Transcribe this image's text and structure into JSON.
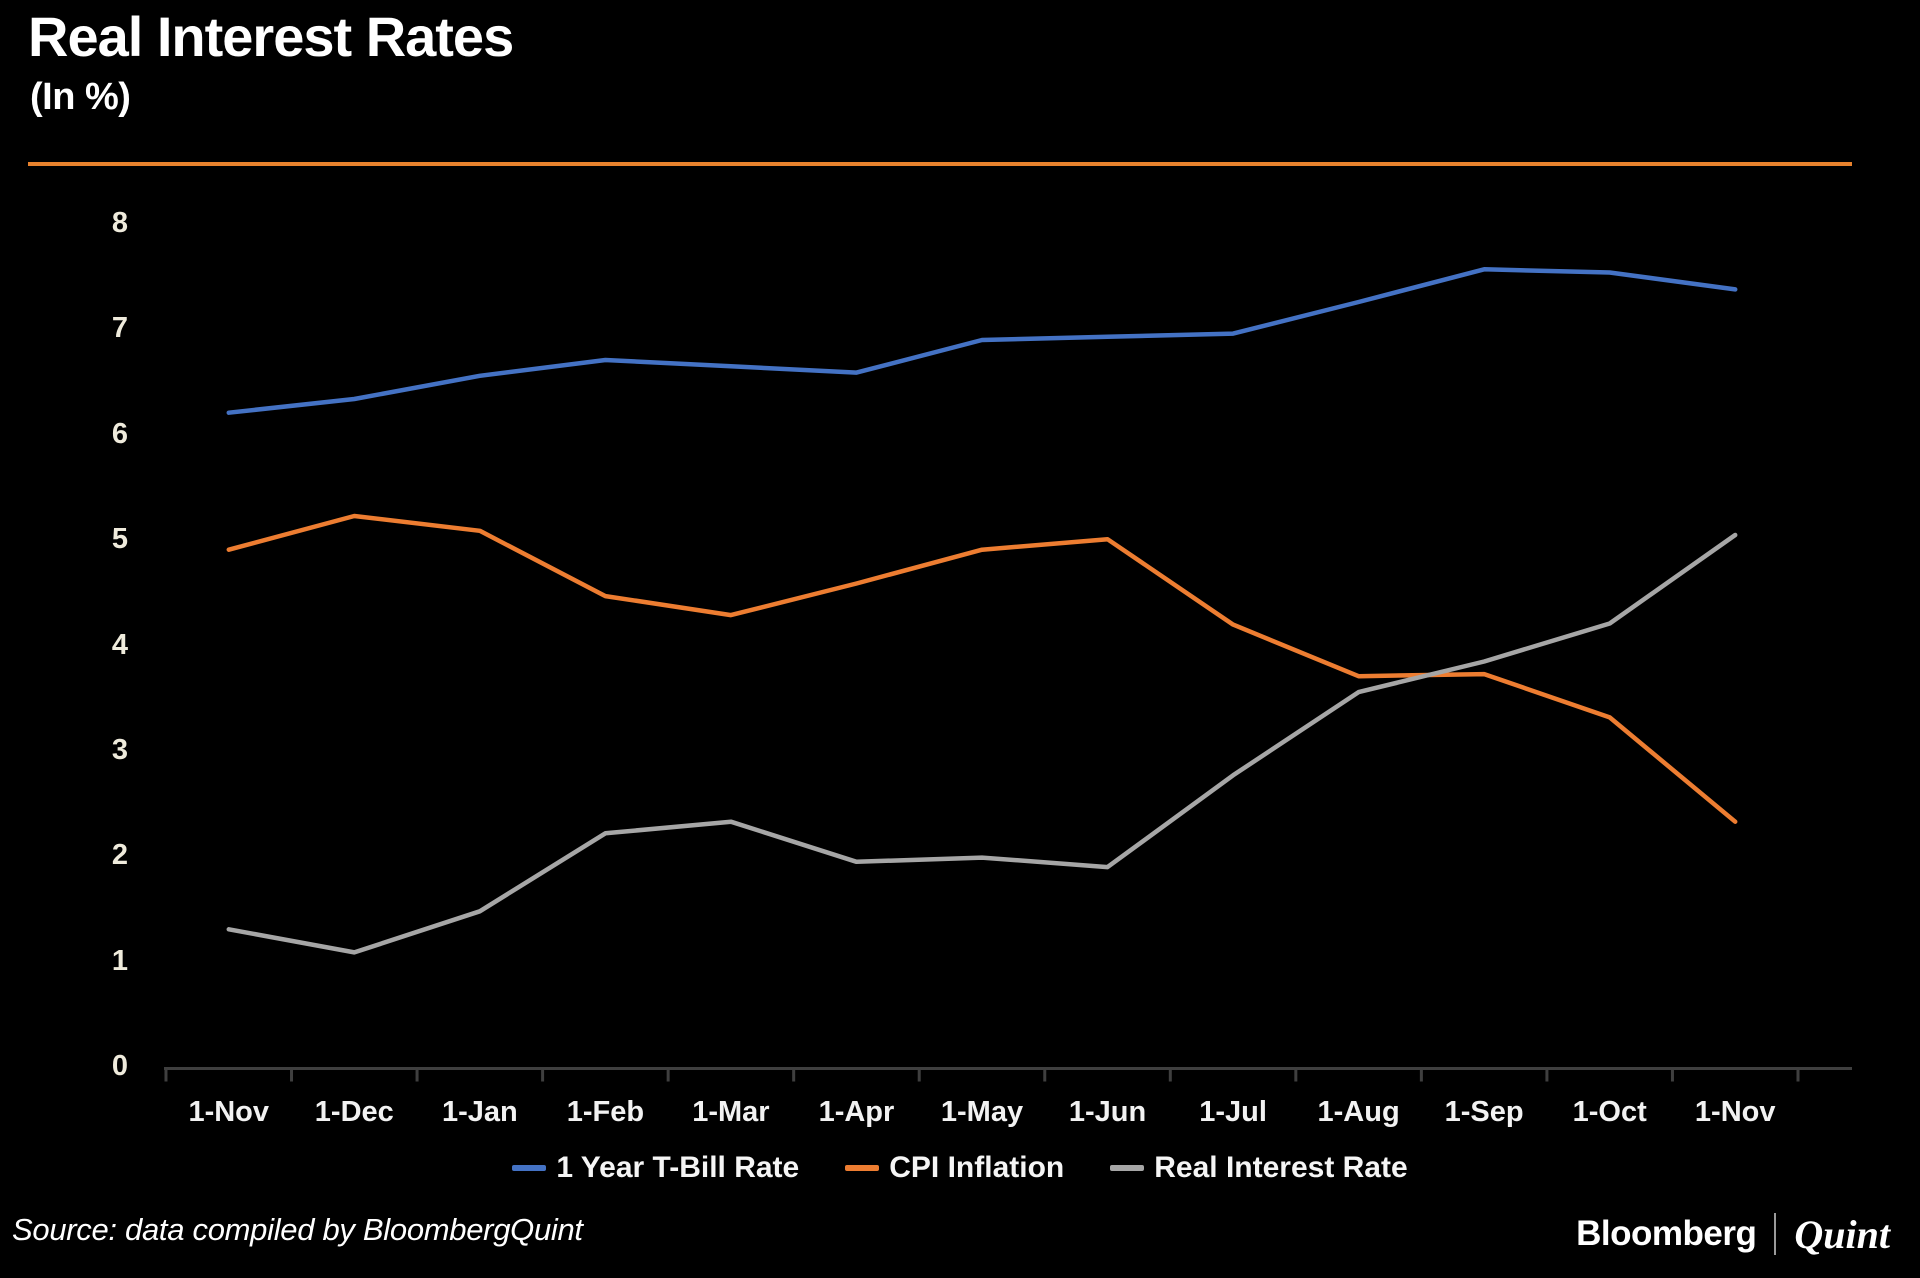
{
  "header": {
    "title": "Real Interest Rates",
    "subtitle": "(In %)"
  },
  "footer": {
    "source": "Source: data compiled by BloombergQuint",
    "logo_bloomberg": "Bloomberg",
    "logo_quint": "Quint"
  },
  "colors": {
    "background": "#000000",
    "accent_rule": "#E8822D",
    "axis": "#3F3F3F",
    "y_label": "#EFEBDC",
    "x_label": "#F2F2F2",
    "legend_label": "#F5F5F5"
  },
  "chart_data": {
    "type": "line",
    "categories": [
      "1-Nov",
      "1-Dec",
      "1-Jan",
      "1-Feb",
      "1-Mar",
      "1-Apr",
      "1-May",
      "1-Jun",
      "1-Jul",
      "1-Aug",
      "1-Sep",
      "1-Oct",
      "1-Nov"
    ],
    "series": [
      {
        "name": "1 Year T-Bill Rate",
        "color": "#4472C4",
        "values": [
          6.2,
          6.33,
          6.55,
          6.7,
          6.64,
          6.58,
          6.89,
          6.92,
          6.95,
          7.25,
          7.56,
          7.53,
          7.37
        ]
      },
      {
        "name": "CPI Inflation",
        "color": "#ED7D31",
        "values": [
          4.9,
          5.22,
          5.08,
          4.46,
          4.28,
          4.58,
          4.9,
          5.0,
          4.19,
          3.7,
          3.72,
          3.31,
          2.32
        ]
      },
      {
        "name": "Real Interest Rate",
        "color": "#A6A6A6",
        "values": [
          1.3,
          1.08,
          1.47,
          2.21,
          2.32,
          1.94,
          1.98,
          1.89,
          2.76,
          3.55,
          3.84,
          4.2,
          5.04
        ]
      }
    ],
    "ylim": [
      0,
      8
    ],
    "ytick_step": 1,
    "xlabel": "",
    "ylabel": "In %",
    "legend_position": "bottom",
    "grid": false
  }
}
